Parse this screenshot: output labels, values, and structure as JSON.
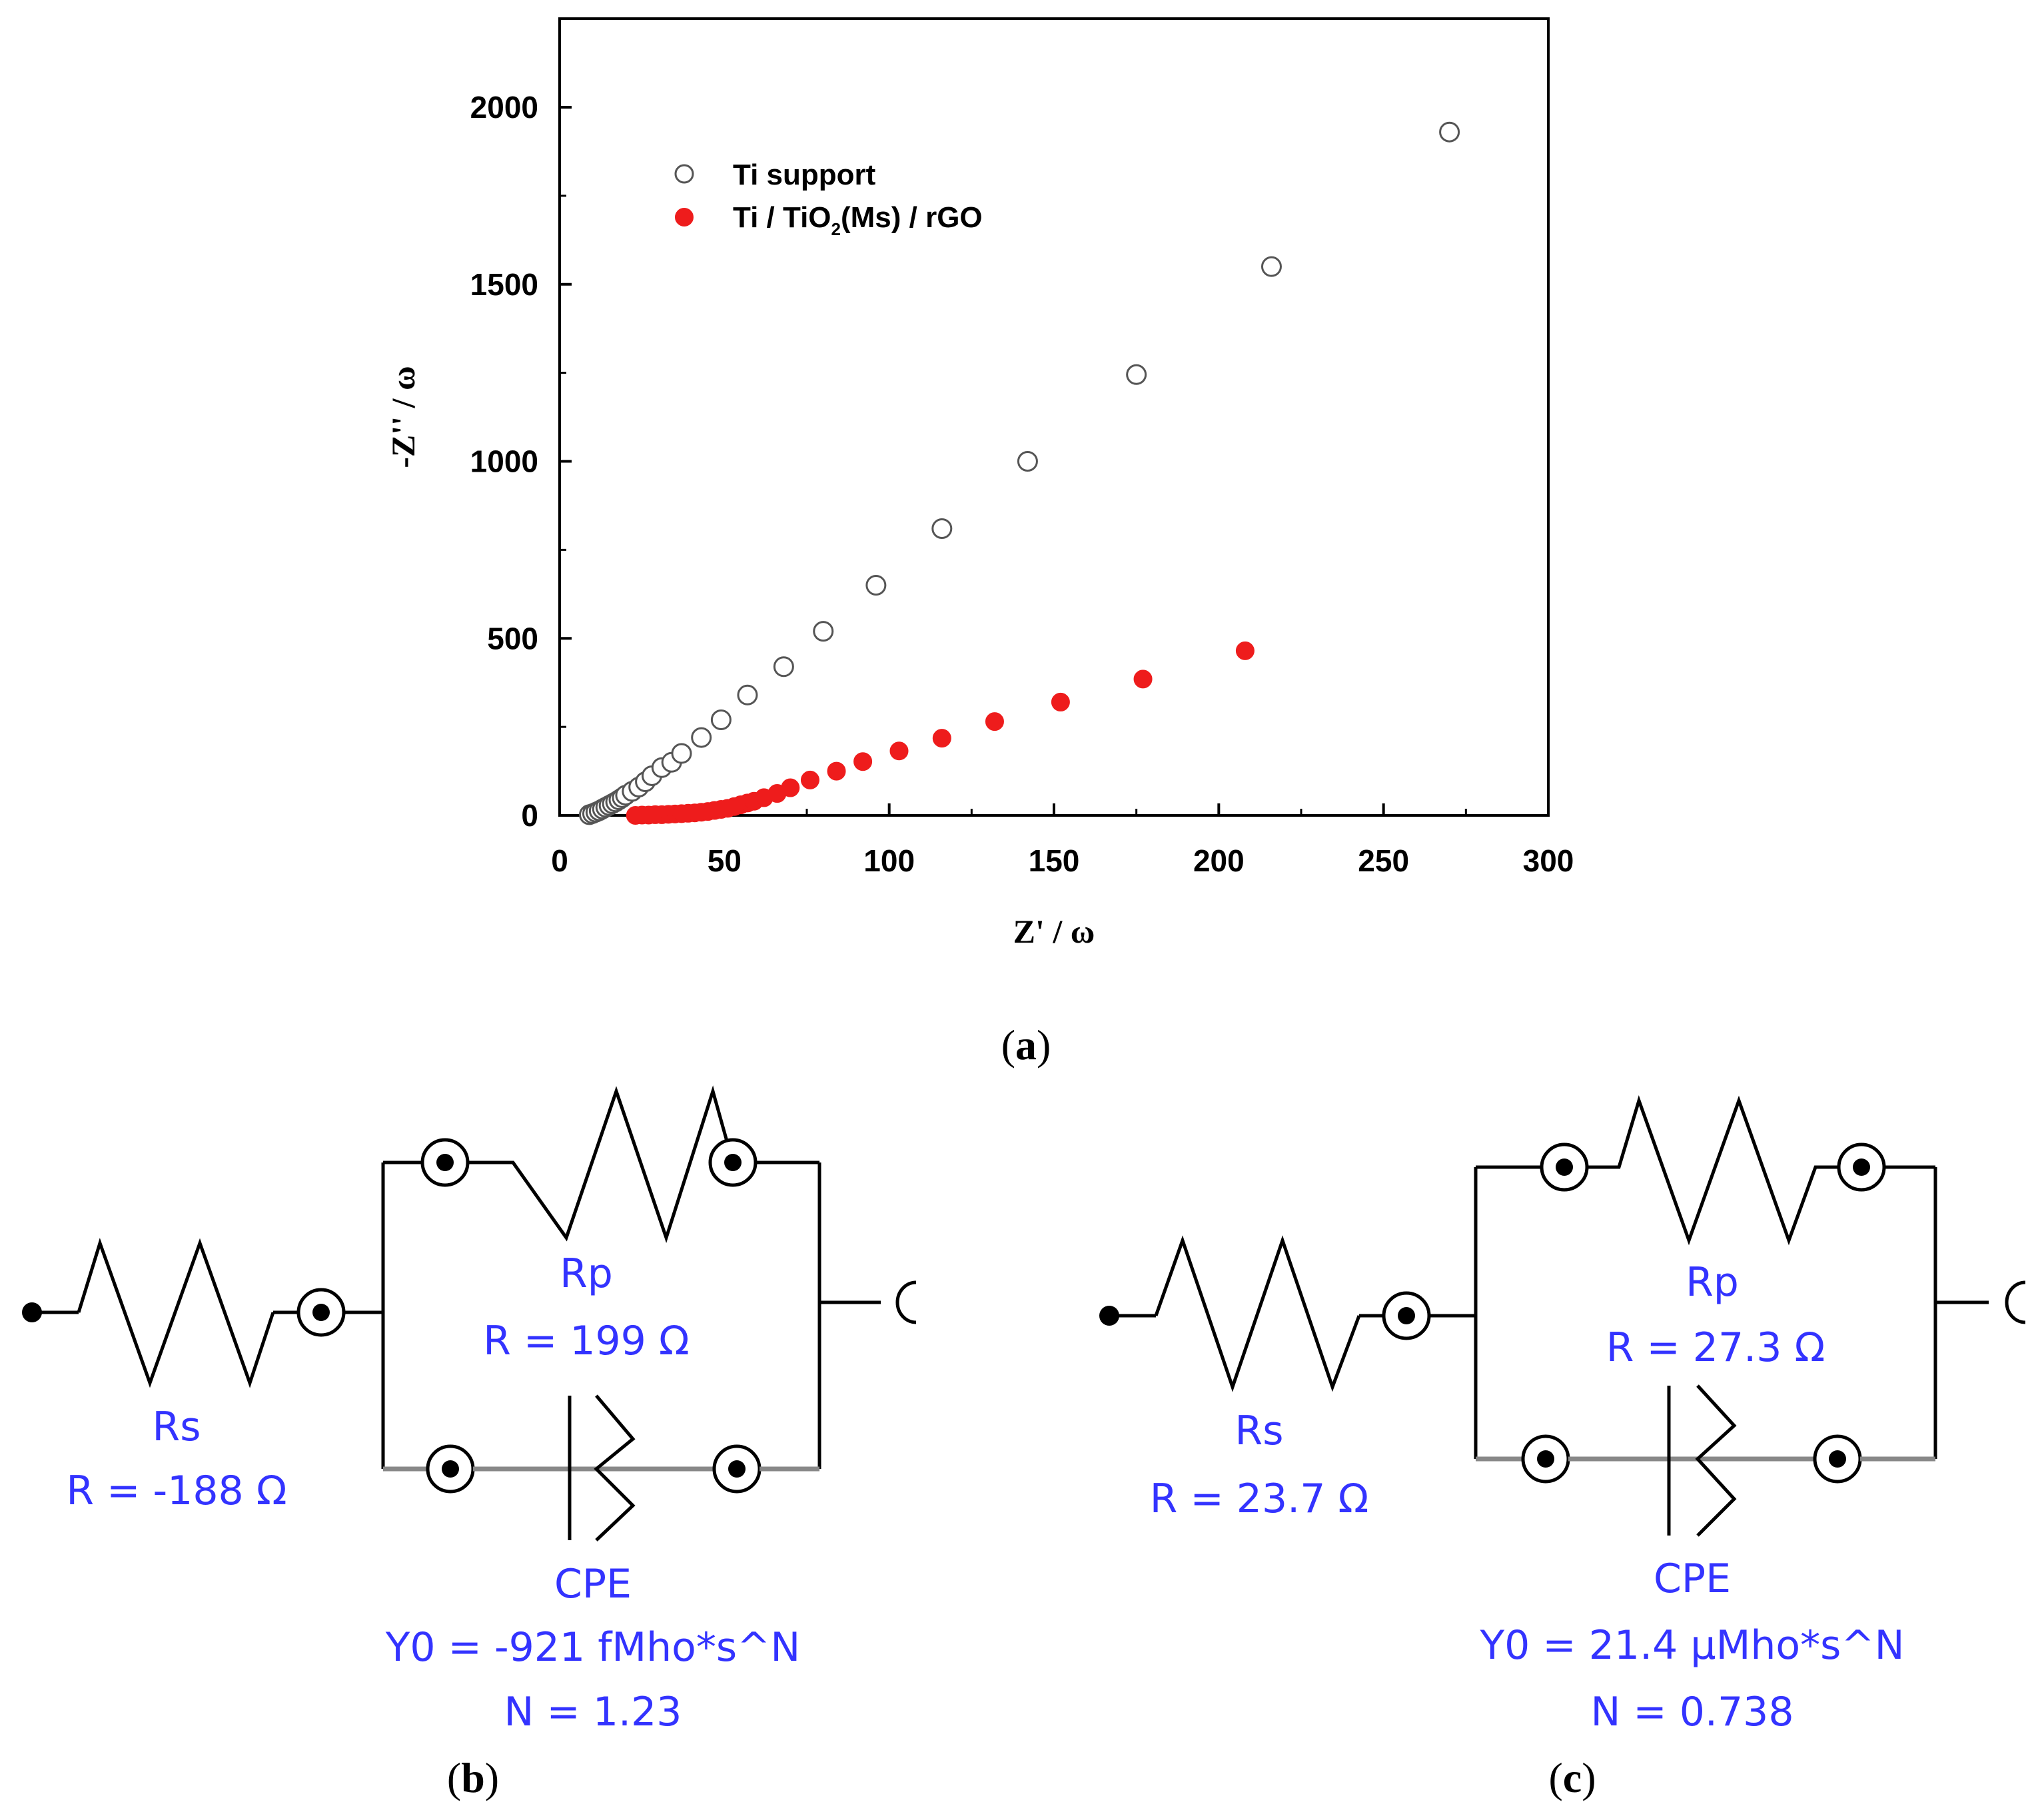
{
  "chart_data": {
    "type": "scatter",
    "title": "",
    "xlabel": "Z' / ω",
    "ylabel": "-Z'' / ω",
    "xlim": [
      0,
      300
    ],
    "ylim": [
      0,
      2250
    ],
    "xticks": [
      0,
      50,
      100,
      150,
      200,
      250,
      300
    ],
    "yticks": [
      0,
      500,
      1000,
      1500,
      2000
    ],
    "xtick_labels": [
      "0",
      "50",
      "100",
      "150",
      "200",
      "250",
      "300"
    ],
    "ytick_labels": [
      "0",
      "500",
      "1000",
      "1500",
      "2000"
    ],
    "legend_position": "top-left",
    "series": [
      {
        "name": "Ti support",
        "marker": "open-circle",
        "color": "#555555",
        "x": [
          9,
          10,
          11,
          12,
          13,
          14,
          15,
          16,
          17,
          18,
          19,
          20,
          22,
          24,
          26,
          28,
          31,
          34,
          37,
          43,
          49,
          57,
          68,
          80,
          96,
          116,
          142,
          175,
          216,
          270
        ],
        "y": [
          2,
          5,
          9,
          13,
          18,
          23,
          28,
          33,
          38,
          44,
          50,
          57,
          68,
          80,
          95,
          112,
          135,
          150,
          175,
          220,
          270,
          340,
          420,
          520,
          650,
          810,
          1000,
          1245,
          1550,
          1930
        ]
      },
      {
        "name": "Ti / TiO₂(Ms) / rGO",
        "legend_main": "Ti / TiO",
        "legend_sub": "2",
        "legend_rest": "(Ms) / rGO",
        "marker": "filled-circle",
        "color": "#ee1c1c",
        "x": [
          23,
          25,
          27,
          29,
          31,
          33,
          35,
          37,
          39,
          41,
          43,
          45,
          47,
          49,
          51,
          53,
          55,
          57,
          59,
          62,
          66,
          70,
          76,
          84,
          92,
          103,
          116,
          132,
          152,
          177,
          208
        ],
        "y": [
          0,
          1,
          1,
          2,
          2,
          3,
          4,
          5,
          6,
          7,
          9,
          11,
          14,
          17,
          20,
          25,
          30,
          35,
          40,
          50,
          62,
          78,
          100,
          125,
          152,
          182,
          218,
          265,
          320,
          385,
          465
        ]
      }
    ]
  },
  "panels": {
    "a": {
      "open": "(",
      "letter": "a",
      "close": ")"
    },
    "b": {
      "open": "(",
      "letter": "b",
      "close": ")"
    },
    "c": {
      "open": "(",
      "letter": "c",
      "close": ")"
    }
  },
  "circuit_b": {
    "rs_name": "Rs",
    "rs_value": "R = -188 Ω",
    "rp_name": "Rp",
    "rp_value": "R = 199 Ω",
    "cpe_name": "CPE",
    "cpe_y0": "Y0 = -921 fMho*s^N",
    "cpe_n": "N = 1.23"
  },
  "circuit_c": {
    "rs_name": "Rs",
    "rs_value": "R = 23.7 Ω",
    "rp_name": "Rp",
    "rp_value": "R = 27.3 Ω",
    "cpe_name": "CPE",
    "cpe_y0": "Y0 = 21.4 μMho*s^N",
    "cpe_n": "N = 0.738"
  }
}
